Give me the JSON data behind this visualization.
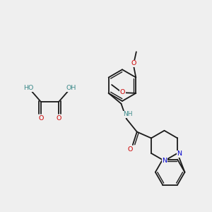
{
  "bg": "#efefef",
  "bc": "#1a1a1a",
  "oc": "#cc0000",
  "nc": "#0000cc",
  "teal": "#3d8b8b",
  "lw": 1.3,
  "lw_db": 1.0,
  "fs": 6.8,
  "figsize": [
    3.0,
    3.0
  ],
  "dpi": 100,
  "xlim": [
    0,
    10
  ],
  "ylim": [
    0,
    10
  ],
  "oxalic": {
    "c1": [
      1.9,
      5.2
    ],
    "c2": [
      2.75,
      5.2
    ]
  }
}
